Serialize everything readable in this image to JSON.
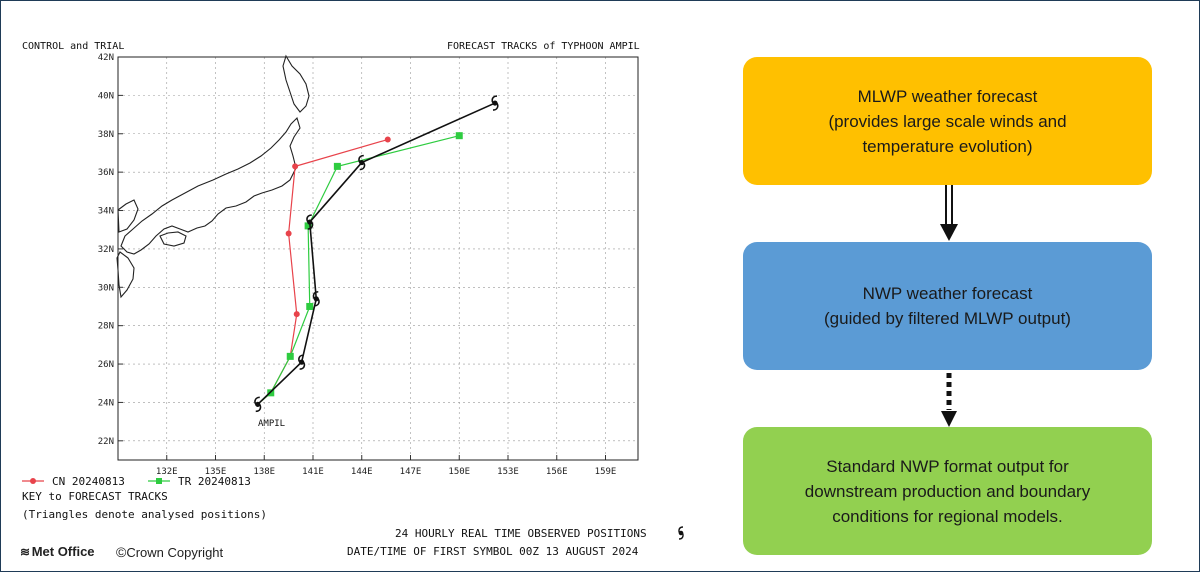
{
  "map": {
    "header_left": "CONTROL and TRIAL",
    "header_right": "FORECAST TRACKS of TYPHOON AMPIL",
    "lat_labels": [
      "42N",
      "40N",
      "38N",
      "36N",
      "34N",
      "32N",
      "30N",
      "28N",
      "26N",
      "24N",
      "22N"
    ],
    "lon_labels": [
      "132E",
      "135E",
      "138E",
      "141E",
      "144E",
      "147E",
      "150E",
      "153E",
      "156E",
      "159E"
    ],
    "storm_label": "AMPIL",
    "legend_series": [
      {
        "name": "CN 20240813",
        "color": "#e8434b",
        "marker": "circle"
      },
      {
        "name": "TR 20240813",
        "color": "#2ecc40",
        "marker": "square"
      }
    ],
    "key_title": "KEY to FORECAST TRACKS",
    "key_note": "(Triangles denote analysed positions)",
    "observed_note": "24 HOURLY REAL TIME OBSERVED POSITIONS",
    "first_symbol_note": "DATE/TIME OF FIRST SYMBOL 00Z 13 AUGUST 2024",
    "brand": "Met Office",
    "copyright": "Crown Copyright",
    "tracks": {
      "observed": {
        "color": "#111111",
        "points": [
          [
            137.6,
            23.9
          ],
          [
            140.3,
            26.1
          ],
          [
            141.2,
            29.4
          ],
          [
            140.8,
            33.4
          ],
          [
            144.0,
            36.5
          ],
          [
            152.2,
            39.6
          ]
        ]
      },
      "cn": {
        "color": "#e8434b",
        "points": [
          [
            137.6,
            23.9
          ],
          [
            138.4,
            24.5
          ],
          [
            139.6,
            26.4
          ],
          [
            140.0,
            28.6
          ],
          [
            139.5,
            32.8
          ],
          [
            139.9,
            36.3
          ],
          [
            145.6,
            37.7
          ]
        ]
      },
      "tr": {
        "color": "#2ecc40",
        "points": [
          [
            137.6,
            23.9
          ],
          [
            138.4,
            24.5
          ],
          [
            139.6,
            26.4
          ],
          [
            140.8,
            29.0
          ],
          [
            140.7,
            33.2
          ],
          [
            142.5,
            36.3
          ],
          [
            150.0,
            37.9
          ]
        ]
      }
    }
  },
  "flowchart": {
    "boxes": [
      {
        "text": "MLWP weather forecast\n(provides large scale winds and\ntemperature evolution)",
        "color": "#ffc000"
      },
      {
        "text": "NWP weather forecast\n(guided by filtered MLWP output)",
        "color": "#5b9bd5"
      },
      {
        "text": "Standard NWP format output for\ndownstream production and boundary\nconditions for regional models.",
        "color": "#92d050"
      }
    ]
  }
}
